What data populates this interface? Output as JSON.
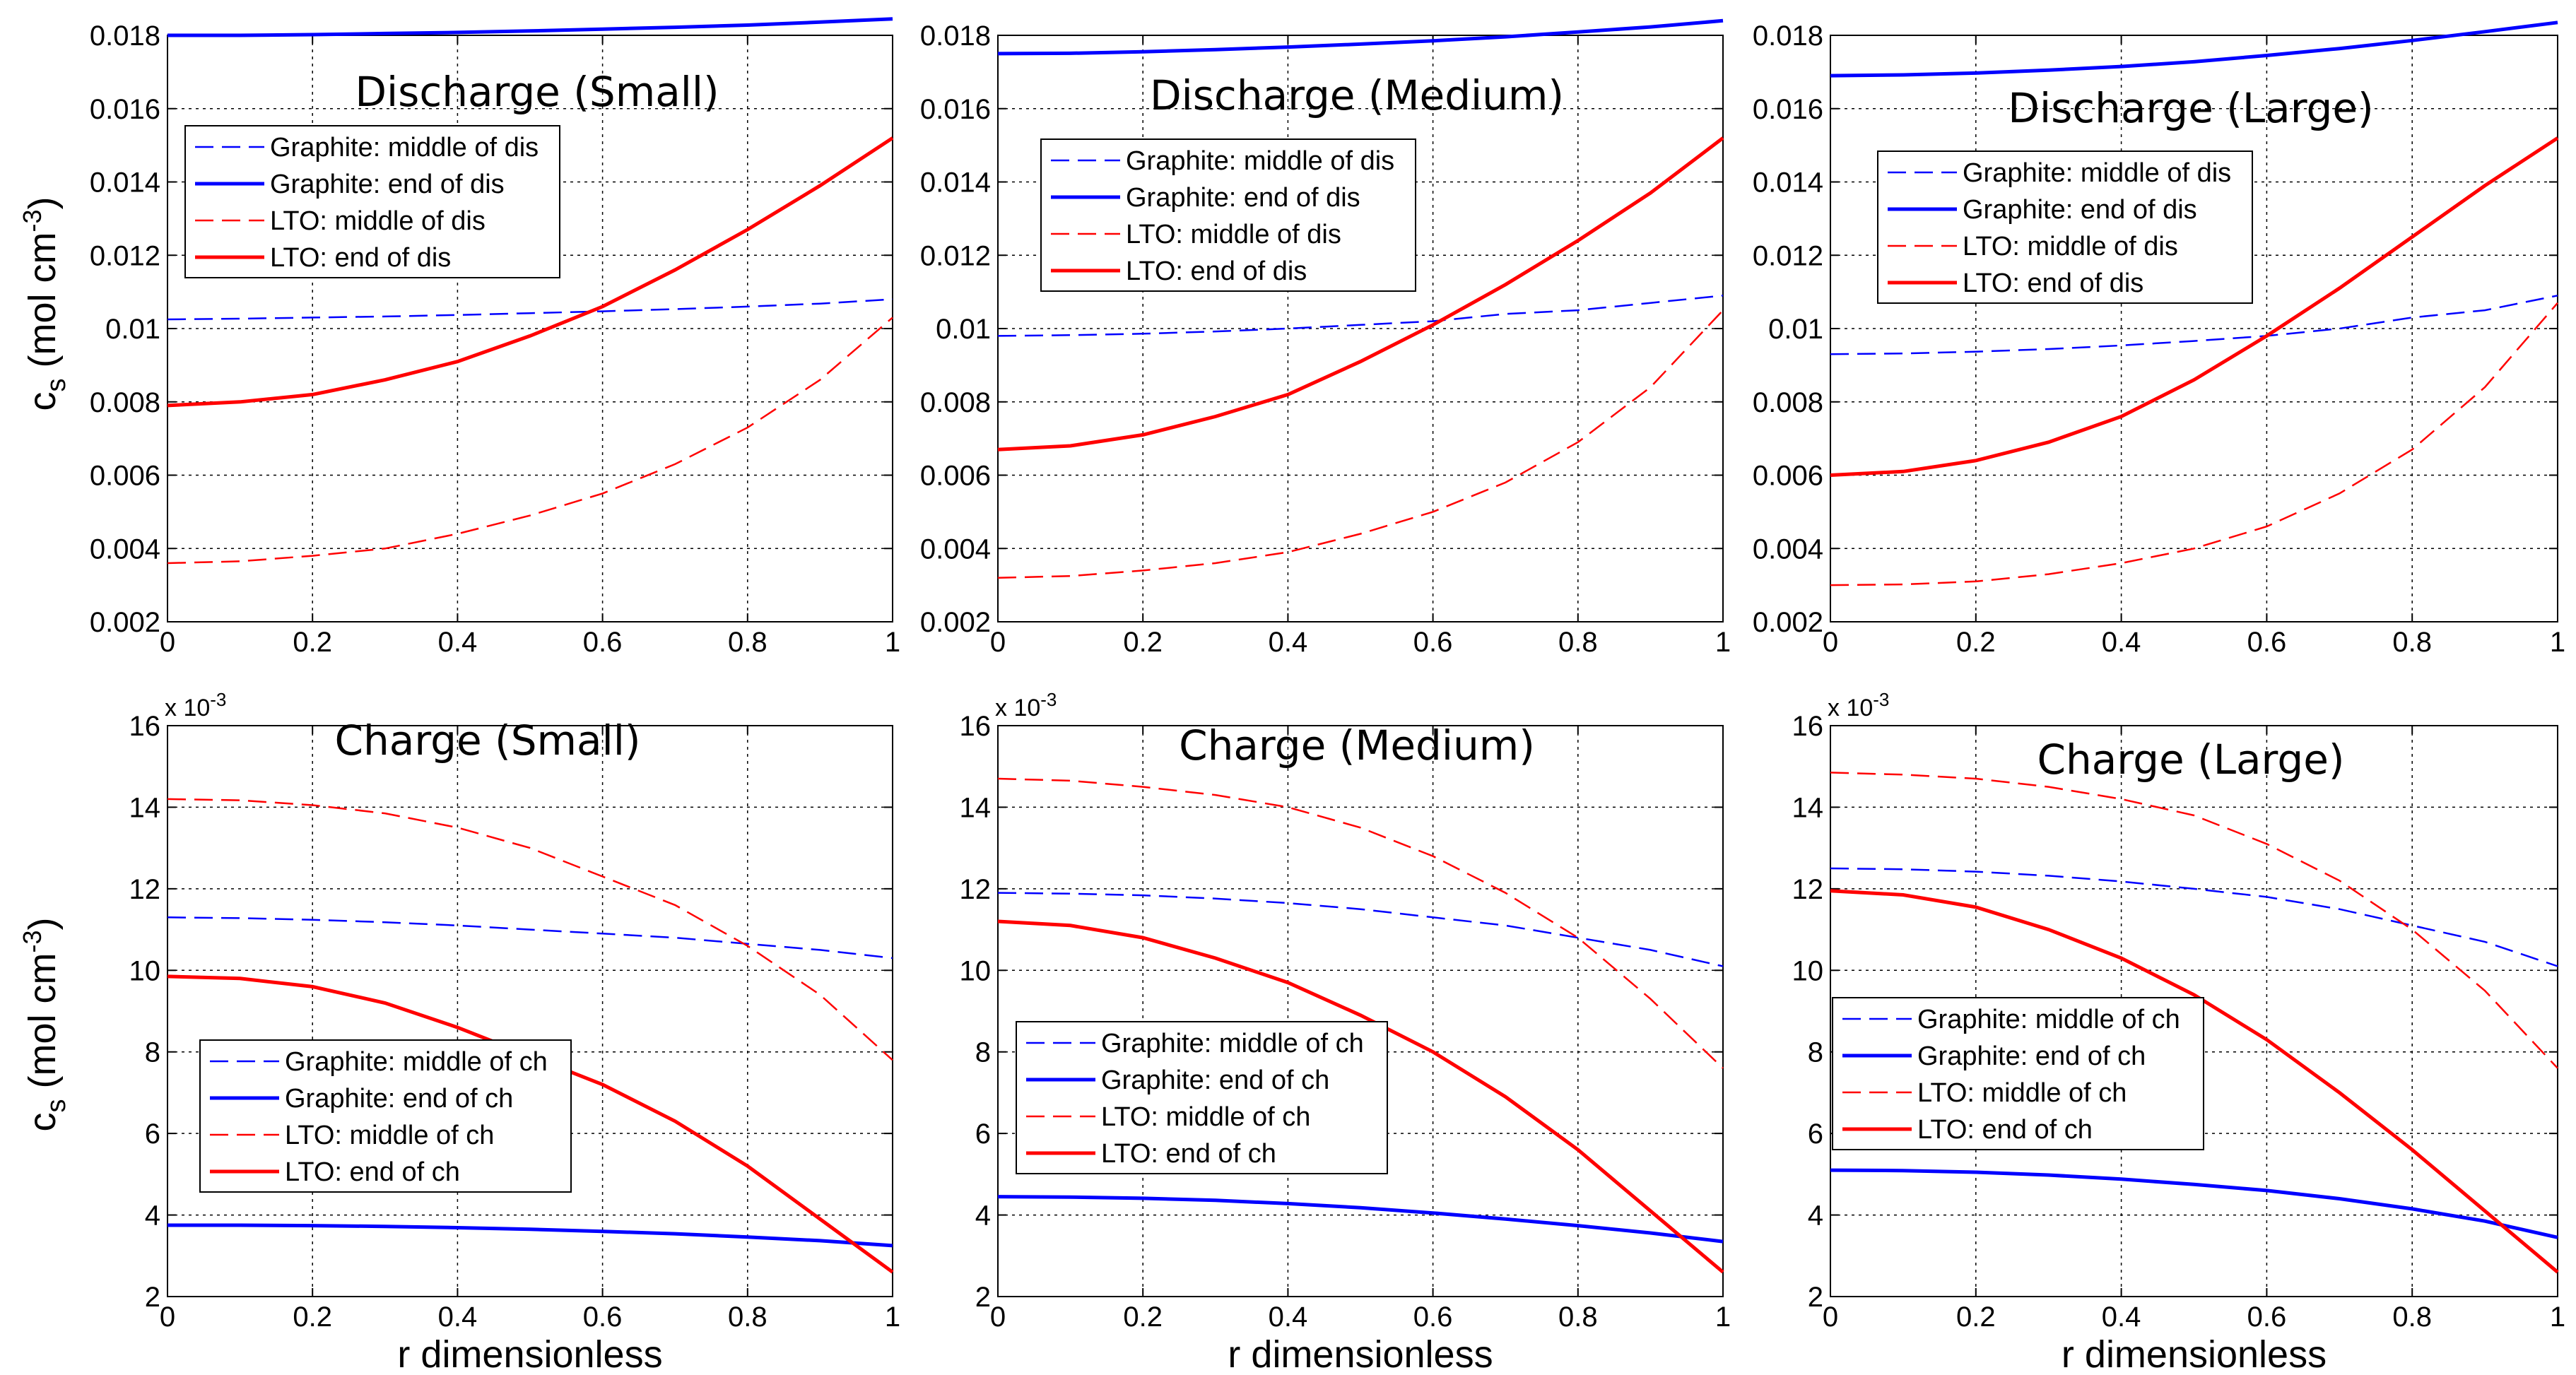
{
  "figure": {
    "ylabel": "c_s (mol cm^-3)",
    "xlabel": "r dimensionless",
    "colors": {
      "graphite": "#0000ff",
      "lto": "#ff0000"
    }
  },
  "chart_data": [
    {
      "type": "line",
      "title": "Discharge (Small)",
      "xlim": [
        0,
        1
      ],
      "ylim": [
        0.002,
        0.018
      ],
      "yticks": [
        "0.002",
        "0.004",
        "0.006",
        "0.008",
        "0.01",
        "0.012",
        "0.014",
        "0.016",
        "0.018"
      ],
      "xticks": [
        "0",
        "0.2",
        "0.4",
        "0.6",
        "0.8",
        "1"
      ],
      "exponent": "",
      "grid": true,
      "legend_position": "upper-left",
      "x": [
        0,
        0.1,
        0.2,
        0.3,
        0.4,
        0.5,
        0.6,
        0.7,
        0.8,
        0.9,
        1.0
      ],
      "series": [
        {
          "name": "Graphite: middle of dis",
          "color": "#0000ff",
          "style": "dashed",
          "values": [
            0.01025,
            0.01027,
            0.0103,
            0.01033,
            0.01037,
            0.01042,
            0.01047,
            0.01053,
            0.0106,
            0.01068,
            0.0108
          ]
        },
        {
          "name": "Graphite: end of dis",
          "color": "#0000ff",
          "style": "solid",
          "values": [
            0.018,
            0.018,
            0.01802,
            0.01805,
            0.01808,
            0.01812,
            0.01817,
            0.01822,
            0.01828,
            0.01836,
            0.01845
          ]
        },
        {
          "name": "LTO: middle of dis",
          "color": "#ff0000",
          "style": "dashed",
          "values": [
            0.0036,
            0.00365,
            0.0038,
            0.004,
            0.0044,
            0.0049,
            0.0055,
            0.0063,
            0.0073,
            0.0086,
            0.0103
          ]
        },
        {
          "name": "LTO: end of dis",
          "color": "#ff0000",
          "style": "solid",
          "values": [
            0.0079,
            0.008,
            0.0082,
            0.0086,
            0.0091,
            0.0098,
            0.0106,
            0.0116,
            0.0127,
            0.0139,
            0.0152
          ]
        }
      ]
    },
    {
      "type": "line",
      "title": "Discharge (Medium)",
      "xlim": [
        0,
        1
      ],
      "ylim": [
        0.002,
        0.018
      ],
      "yticks": [
        "0.002",
        "0.004",
        "0.006",
        "0.008",
        "0.01",
        "0.012",
        "0.014",
        "0.016",
        "0.018"
      ],
      "xticks": [
        "0",
        "0.2",
        "0.4",
        "0.6",
        "0.8",
        "1"
      ],
      "exponent": "",
      "grid": true,
      "legend_position": "upper-left",
      "x": [
        0,
        0.1,
        0.2,
        0.3,
        0.4,
        0.5,
        0.6,
        0.7,
        0.8,
        0.9,
        1.0
      ],
      "series": [
        {
          "name": "Graphite: middle of dis",
          "color": "#0000ff",
          "style": "dashed",
          "values": [
            0.0098,
            0.00982,
            0.00986,
            0.00992,
            0.01,
            0.0101,
            0.0102,
            0.0104,
            0.0105,
            0.0107,
            0.0109
          ]
        },
        {
          "name": "Graphite: end of dis",
          "color": "#0000ff",
          "style": "solid",
          "values": [
            0.0175,
            0.01751,
            0.01755,
            0.01761,
            0.01768,
            0.01776,
            0.01785,
            0.01796,
            0.01809,
            0.01823,
            0.0184
          ]
        },
        {
          "name": "LTO: middle of dis",
          "color": "#ff0000",
          "style": "dashed",
          "values": [
            0.0032,
            0.00325,
            0.0034,
            0.0036,
            0.0039,
            0.0044,
            0.005,
            0.0058,
            0.0069,
            0.0084,
            0.0105
          ]
        },
        {
          "name": "LTO: end of dis",
          "color": "#ff0000",
          "style": "solid",
          "values": [
            0.0067,
            0.0068,
            0.0071,
            0.0076,
            0.0082,
            0.0091,
            0.0101,
            0.0112,
            0.0124,
            0.0137,
            0.0152
          ]
        }
      ]
    },
    {
      "type": "line",
      "title": "Discharge (Large)",
      "xlim": [
        0,
        1
      ],
      "ylim": [
        0.002,
        0.018
      ],
      "yticks": [
        "0.002",
        "0.004",
        "0.006",
        "0.008",
        "0.01",
        "0.012",
        "0.014",
        "0.016",
        "0.018"
      ],
      "xticks": [
        "0",
        "0.2",
        "0.4",
        "0.6",
        "0.8",
        "1"
      ],
      "exponent": "",
      "grid": true,
      "legend_position": "upper-left",
      "x": [
        0,
        0.1,
        0.2,
        0.3,
        0.4,
        0.5,
        0.6,
        0.7,
        0.8,
        0.9,
        1.0
      ],
      "series": [
        {
          "name": "Graphite: middle of dis",
          "color": "#0000ff",
          "style": "dashed",
          "values": [
            0.0093,
            0.00932,
            0.00937,
            0.00944,
            0.00954,
            0.00966,
            0.0098,
            0.01,
            0.0103,
            0.0105,
            0.0109
          ]
        },
        {
          "name": "Graphite: end of dis",
          "color": "#0000ff",
          "style": "solid",
          "values": [
            0.0169,
            0.01692,
            0.01697,
            0.01705,
            0.01715,
            0.01728,
            0.01745,
            0.01764,
            0.01786,
            0.0181,
            0.01835
          ]
        },
        {
          "name": "LTO: middle of dis",
          "color": "#ff0000",
          "style": "dashed",
          "values": [
            0.003,
            0.00302,
            0.0031,
            0.0033,
            0.0036,
            0.004,
            0.0046,
            0.0055,
            0.0067,
            0.0084,
            0.0107
          ]
        },
        {
          "name": "LTO: end of dis",
          "color": "#ff0000",
          "style": "solid",
          "values": [
            0.006,
            0.0061,
            0.0064,
            0.0069,
            0.0076,
            0.0086,
            0.0098,
            0.0111,
            0.0125,
            0.0139,
            0.0152
          ]
        }
      ]
    },
    {
      "type": "line",
      "title": "Charge (Small)",
      "xlim": [
        0,
        1
      ],
      "ylim": [
        2,
        16
      ],
      "yticks": [
        "2",
        "4",
        "6",
        "8",
        "10",
        "12",
        "14",
        "16"
      ],
      "xticks": [
        "0",
        "0.2",
        "0.4",
        "0.6",
        "0.8",
        "1"
      ],
      "exponent": "x 10^-3",
      "grid": true,
      "legend_position": "lower-left",
      "x": [
        0,
        0.1,
        0.2,
        0.3,
        0.4,
        0.5,
        0.6,
        0.7,
        0.8,
        0.9,
        1.0
      ],
      "series": [
        {
          "name": "Graphite: middle of ch",
          "color": "#0000ff",
          "style": "dashed",
          "values": [
            11.3,
            11.28,
            11.24,
            11.18,
            11.1,
            11.0,
            10.9,
            10.8,
            10.65,
            10.5,
            10.3
          ]
        },
        {
          "name": "Graphite: end of ch",
          "color": "#0000ff",
          "style": "solid",
          "values": [
            3.75,
            3.75,
            3.74,
            3.72,
            3.69,
            3.65,
            3.6,
            3.54,
            3.46,
            3.37,
            3.25
          ]
        },
        {
          "name": "LTO: middle of ch",
          "color": "#ff0000",
          "style": "dashed",
          "values": [
            14.2,
            14.17,
            14.05,
            13.85,
            13.5,
            13.0,
            12.3,
            11.6,
            10.6,
            9.4,
            7.8
          ]
        },
        {
          "name": "LTO: end of ch",
          "color": "#ff0000",
          "style": "solid",
          "values": [
            9.85,
            9.8,
            9.6,
            9.2,
            8.6,
            7.9,
            7.2,
            6.3,
            5.2,
            3.9,
            2.6
          ]
        }
      ]
    },
    {
      "type": "line",
      "title": "Charge (Medium)",
      "xlim": [
        0,
        1
      ],
      "ylim": [
        2,
        16
      ],
      "yticks": [
        "2",
        "4",
        "6",
        "8",
        "10",
        "12",
        "14",
        "16"
      ],
      "xticks": [
        "0",
        "0.2",
        "0.4",
        "0.6",
        "0.8",
        "1"
      ],
      "exponent": "x 10^-3",
      "grid": true,
      "legend_position": "lower-left",
      "x": [
        0,
        0.1,
        0.2,
        0.3,
        0.4,
        0.5,
        0.6,
        0.7,
        0.8,
        0.9,
        1.0
      ],
      "series": [
        {
          "name": "Graphite: middle of ch",
          "color": "#0000ff",
          "style": "dashed",
          "values": [
            11.9,
            11.88,
            11.84,
            11.76,
            11.65,
            11.5,
            11.3,
            11.1,
            10.8,
            10.5,
            10.1
          ]
        },
        {
          "name": "Graphite: end of ch",
          "color": "#0000ff",
          "style": "solid",
          "values": [
            4.45,
            4.44,
            4.41,
            4.36,
            4.28,
            4.18,
            4.05,
            3.9,
            3.74,
            3.56,
            3.35
          ]
        },
        {
          "name": "LTO: middle of ch",
          "color": "#ff0000",
          "style": "dashed",
          "values": [
            14.7,
            14.65,
            14.5,
            14.3,
            14.0,
            13.5,
            12.8,
            11.9,
            10.8,
            9.3,
            7.6
          ]
        },
        {
          "name": "LTO: end of ch",
          "color": "#ff0000",
          "style": "solid",
          "values": [
            11.2,
            11.1,
            10.8,
            10.3,
            9.7,
            8.9,
            8.0,
            6.9,
            5.6,
            4.1,
            2.6
          ]
        }
      ]
    },
    {
      "type": "line",
      "title": "Charge (Large)",
      "xlim": [
        0,
        1
      ],
      "ylim": [
        2,
        16
      ],
      "yticks": [
        "2",
        "4",
        "6",
        "8",
        "10",
        "12",
        "14",
        "16"
      ],
      "xticks": [
        "0",
        "0.2",
        "0.4",
        "0.6",
        "0.8",
        "1"
      ],
      "exponent": "x 10^-3",
      "grid": true,
      "legend_position": "lower-left",
      "x": [
        0,
        0.1,
        0.2,
        0.3,
        0.4,
        0.5,
        0.6,
        0.7,
        0.8,
        0.9,
        1.0
      ],
      "series": [
        {
          "name": "Graphite: middle of ch",
          "color": "#0000ff",
          "style": "dashed",
          "values": [
            12.5,
            12.48,
            12.42,
            12.32,
            12.18,
            12.0,
            11.8,
            11.5,
            11.1,
            10.7,
            10.1
          ]
        },
        {
          "name": "Graphite: end of ch",
          "color": "#0000ff",
          "style": "solid",
          "values": [
            5.1,
            5.09,
            5.05,
            4.98,
            4.88,
            4.75,
            4.6,
            4.4,
            4.15,
            3.85,
            3.45
          ]
        },
        {
          "name": "LTO: middle of ch",
          "color": "#ff0000",
          "style": "dashed",
          "values": [
            14.85,
            14.8,
            14.7,
            14.5,
            14.2,
            13.8,
            13.1,
            12.2,
            11.0,
            9.5,
            7.6
          ]
        },
        {
          "name": "LTO: end of ch",
          "color": "#ff0000",
          "style": "solid",
          "values": [
            11.95,
            11.85,
            11.55,
            11.0,
            10.3,
            9.4,
            8.3,
            7.0,
            5.6,
            4.1,
            2.6
          ]
        }
      ]
    }
  ]
}
